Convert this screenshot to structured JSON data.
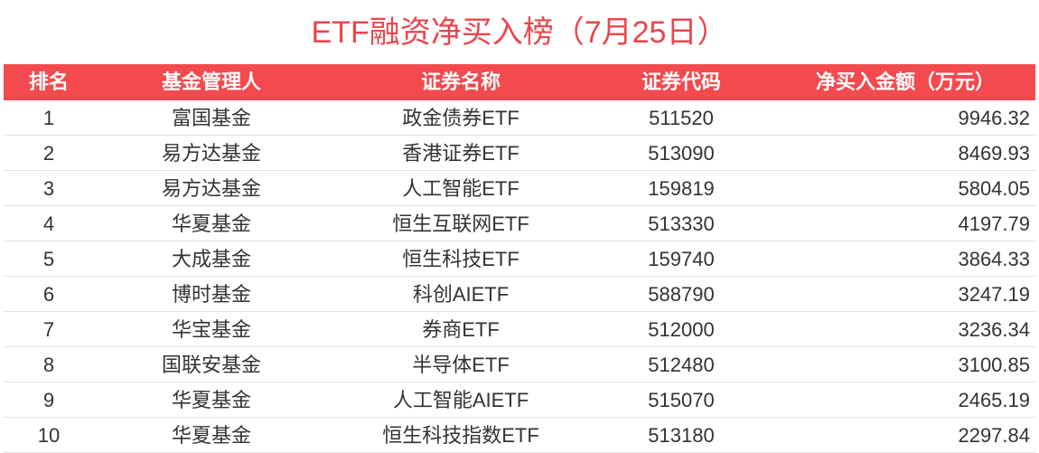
{
  "title": "ETF融资净买入榜（7月25日）",
  "table": {
    "headers": [
      "排名",
      "基金管理人",
      "证券名称",
      "证券代码",
      "净买入金额（万元）"
    ],
    "rows": [
      [
        "1",
        "富国基金",
        "政金债券ETF",
        "511520",
        "9946.32"
      ],
      [
        "2",
        "易方达基金",
        "香港证券ETF",
        "513090",
        "8469.93"
      ],
      [
        "3",
        "易方达基金",
        "人工智能ETF",
        "159819",
        "5804.05"
      ],
      [
        "4",
        "华夏基金",
        "恒生互联网ETF",
        "513330",
        "4197.79"
      ],
      [
        "5",
        "大成基金",
        "恒生科技ETF",
        "159740",
        "3864.33"
      ],
      [
        "6",
        "博时基金",
        "科创AIETF",
        "588790",
        "3247.19"
      ],
      [
        "7",
        "华宝基金",
        "券商ETF",
        "512000",
        "3236.34"
      ],
      [
        "8",
        "国联安基金",
        "半导体ETF",
        "512480",
        "3100.85"
      ],
      [
        "9",
        "华夏基金",
        "人工智能AIETF",
        "515070",
        "2465.19"
      ],
      [
        "10",
        "华夏基金",
        "恒生科技指数ETF",
        "513180",
        "2297.84"
      ]
    ]
  }
}
